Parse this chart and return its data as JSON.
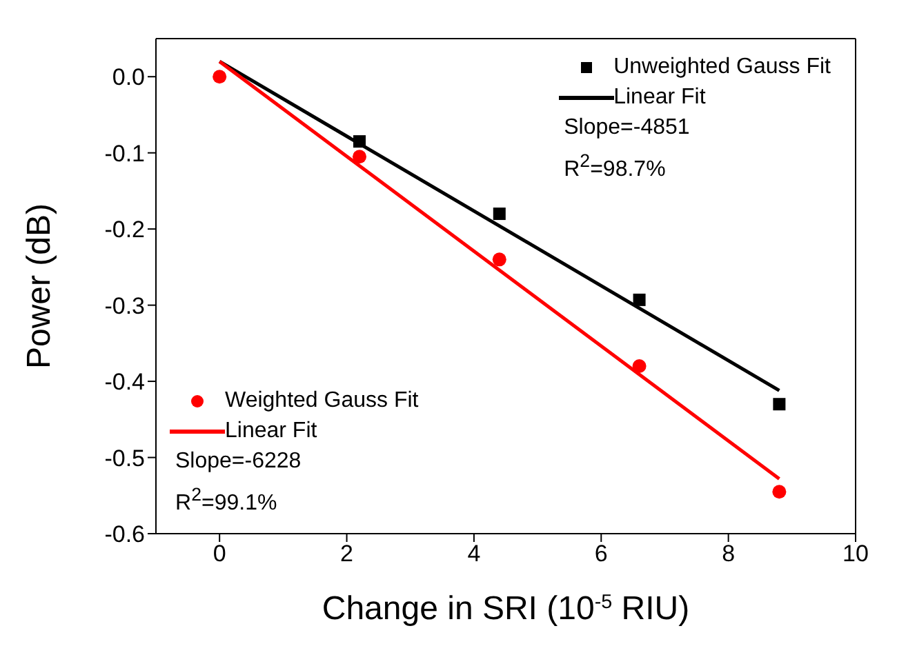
{
  "chart_data": {
    "type": "scatter",
    "xlabel": "Change in SRI (10$^{-5}$ RIU)",
    "ylabel": "Power (dB)",
    "xlim": [
      -1,
      10
    ],
    "xticks": [
      0,
      2,
      4,
      6,
      8,
      10
    ],
    "ylim": [
      -0.6,
      0.05
    ],
    "yticks": [
      -0.6,
      -0.5,
      -0.4,
      -0.3,
      -0.2,
      -0.1,
      {
        "value": 0,
        "label": "0.0"
      }
    ],
    "legend": "top right",
    "series": [
      {
        "name": "Unweighted Gauss Fit",
        "marker": "square",
        "color": "#000000",
        "x": [
          2.2,
          4.4,
          6.6,
          8.8
        ],
        "values": [
          -0.085,
          -0.18,
          -0.293,
          -0.43
        ]
      },
      {
        "name": "Linear Fit",
        "type": "line",
        "marker": "none",
        "color": "#000000",
        "x": [
          0,
          8.8
        ],
        "values": [
          0.02,
          -0.412
        ]
      },
      {
        "name": "Weighted Gauss Fit",
        "marker": "circle",
        "color": "#ff0000",
        "x": [
          0,
          2.2,
          4.4,
          6.6,
          8.8
        ],
        "values": [
          0,
          -0.105,
          -0.24,
          -0.38,
          -0.545
        ]
      },
      {
        "name": "Linear Fit",
        "type": "line",
        "marker": "none",
        "color": "#ff0000",
        "x": [
          0,
          8.8
        ],
        "values": [
          0.02,
          -0.528
        ]
      }
    ],
    "annotations": [
      "Slope=-4851",
      "R$^{2}$=98.7%",
      "Slope=-6228",
      "R$^{2}$=99.1%"
    ]
  }
}
